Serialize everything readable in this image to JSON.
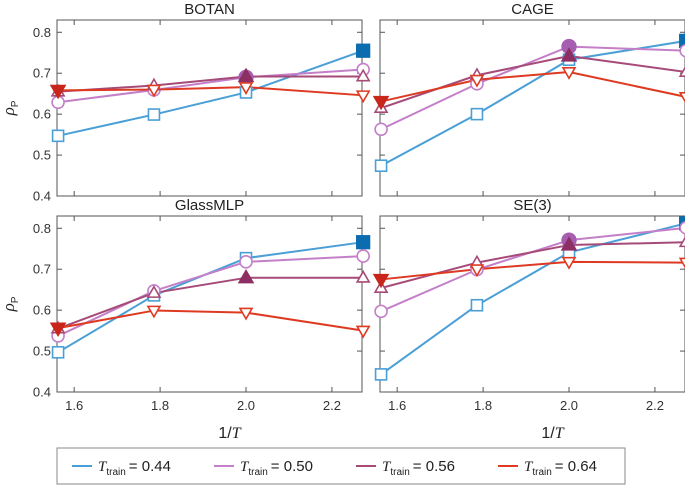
{
  "chart_data": {
    "type": "line",
    "xlabel_main": "1/",
    "xlabel_var": "T",
    "ylabel_var": "ρ",
    "ylabel_sub": "P",
    "xlim": [
      1.56,
      2.27
    ],
    "ylim": [
      0.4,
      0.83
    ],
    "xticks": [
      1.6,
      1.8,
      2.0,
      2.2
    ],
    "xtick_labels": [
      "1.6",
      "1.8",
      "2.0",
      "2.2"
    ],
    "yticks": [
      0.4,
      0.5,
      0.6,
      0.7,
      0.8
    ],
    "ytick_labels": [
      "0.4",
      "0.5",
      "0.6",
      "0.7",
      "0.8"
    ],
    "x": [
      1.5625,
      1.7857,
      2.0,
      2.2727
    ],
    "series_styles": [
      {
        "name": "T_train = 0.44",
        "color": "#4a9fd6",
        "marker": "square",
        "best_color": "#0b6cb0"
      },
      {
        "name": "T_train = 0.50",
        "color": "#c47fc9",
        "marker": "circle",
        "best_color": "#a65fb0"
      },
      {
        "name": "T_train = 0.56",
        "color": "#a64a78",
        "marker": "triangle-up",
        "best_color": "#8e2f63"
      },
      {
        "name": "T_train = 0.64",
        "color": "#de3a22",
        "marker": "triangle-down",
        "best_color": "#c8261a"
      }
    ],
    "legend": {
      "prefix": "T",
      "sub": "train",
      "labels": [
        "= 0.44",
        "= 0.50",
        "= 0.56",
        "= 0.64"
      ]
    },
    "panels": [
      {
        "title": "BOTAN",
        "series": [
          {
            "values": [
              0.547,
              0.599,
              0.653,
              0.755
            ],
            "best": [
              false,
              false,
              false,
              true
            ]
          },
          {
            "values": [
              0.629,
              0.659,
              0.69,
              0.709
            ],
            "best": [
              false,
              false,
              true,
              false
            ]
          },
          {
            "values": [
              0.655,
              0.67,
              0.692,
              0.692
            ],
            "best": [
              false,
              false,
              true,
              false
            ]
          },
          {
            "values": [
              0.658,
              0.66,
              0.666,
              0.646
            ],
            "best": [
              true,
              false,
              false,
              false
            ]
          }
        ]
      },
      {
        "title": "CAGE",
        "series": [
          {
            "values": [
              0.474,
              0.6,
              0.733,
              0.779
            ],
            "best": [
              false,
              false,
              false,
              true
            ]
          },
          {
            "values": [
              0.563,
              0.674,
              0.765,
              0.755
            ],
            "best": [
              false,
              false,
              true,
              false
            ]
          },
          {
            "values": [
              0.615,
              0.695,
              0.742,
              0.703
            ],
            "best": [
              false,
              false,
              true,
              false
            ]
          },
          {
            "values": [
              0.631,
              0.684,
              0.703,
              0.642
            ],
            "best": [
              true,
              false,
              false,
              false
            ]
          }
        ]
      },
      {
        "title": "GlassMLP",
        "series": [
          {
            "values": [
              0.497,
              0.636,
              0.727,
              0.766
            ],
            "best": [
              false,
              false,
              false,
              true
            ]
          },
          {
            "values": [
              0.537,
              0.647,
              0.718,
              0.732
            ],
            "best": [
              false,
              false,
              false,
              false
            ]
          },
          {
            "values": [
              0.555,
              0.642,
              0.679,
              0.679
            ],
            "best": [
              false,
              false,
              true,
              false
            ]
          },
          {
            "values": [
              0.556,
              0.599,
              0.594,
              0.55
            ],
            "best": [
              true,
              false,
              false,
              false
            ]
          }
        ]
      },
      {
        "title": "SE(3)",
        "series": [
          {
            "values": [
              0.443,
              0.612,
              0.741,
              0.812
            ],
            "best": [
              false,
              false,
              false,
              true
            ]
          },
          {
            "values": [
              0.597,
              0.699,
              0.771,
              0.801
            ],
            "best": [
              false,
              false,
              true,
              false
            ]
          },
          {
            "values": [
              0.654,
              0.716,
              0.759,
              0.766
            ],
            "best": [
              false,
              false,
              true,
              false
            ]
          },
          {
            "values": [
              0.675,
              0.7,
              0.718,
              0.716
            ],
            "best": [
              true,
              false,
              false,
              false
            ]
          }
        ]
      }
    ]
  }
}
